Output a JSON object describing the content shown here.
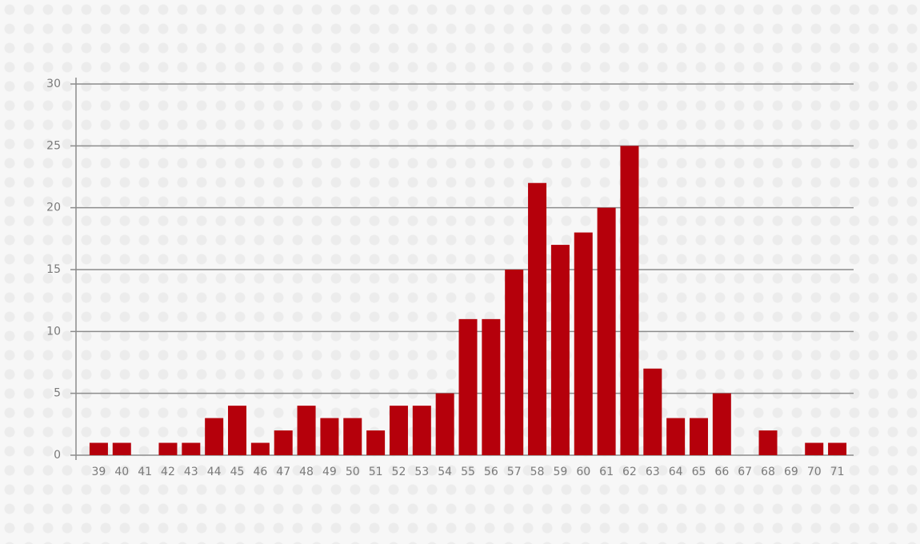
{
  "chart_data": {
    "type": "bar",
    "categories": [
      "39",
      "40",
      "41",
      "42",
      "43",
      "44",
      "45",
      "46",
      "47",
      "48",
      "49",
      "50",
      "51",
      "52",
      "53",
      "54",
      "55",
      "56",
      "57",
      "58",
      "59",
      "60",
      "61",
      "62",
      "63",
      "64",
      "65",
      "66",
      "67",
      "68",
      "69",
      "70",
      "71"
    ],
    "values": [
      1,
      1,
      0,
      1,
      1,
      3,
      4,
      1,
      2,
      4,
      3,
      3,
      2,
      4,
      4,
      5,
      11,
      11,
      15,
      22,
      17,
      18,
      20,
      25,
      7,
      3,
      3,
      5,
      0,
      2,
      0,
      1,
      1
    ],
    "color": "#b5000b",
    "ylim": [
      0,
      30
    ],
    "yticks": [
      0,
      5,
      10,
      15,
      20,
      25,
      30
    ],
    "grid": true
  }
}
